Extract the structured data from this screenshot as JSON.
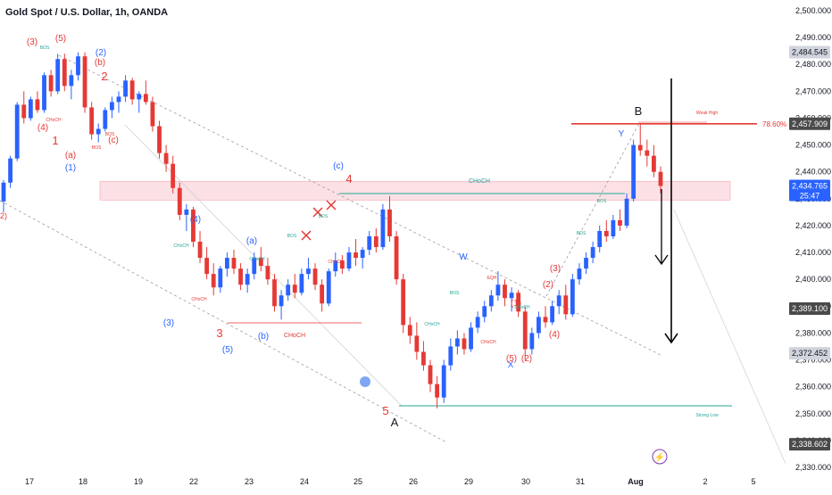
{
  "header": {
    "title": "Gold Spot / U.S. Dollar, 1h, OANDA"
  },
  "chart_data": {
    "type": "candlestick",
    "symbol_title": "Gold Spot / U.S. Dollar, 1h, OANDA",
    "y_axis": {
      "ticks": [
        "2,500.000",
        "2,490.000",
        "2,480.000",
        "2,470.000",
        "2,460.000",
        "2,450.000",
        "2,440.000",
        "2,430.000",
        "2,420.000",
        "2,410.000",
        "2,400.000",
        "2,390.000",
        "2,380.000",
        "2,370.000",
        "2,360.000",
        "2,350.000",
        "2,340.000",
        "2,330.000"
      ],
      "range": [
        2330,
        2500
      ]
    },
    "x_axis": {
      "ticks": [
        "17",
        "18",
        "19",
        "22",
        "23",
        "24",
        "25",
        "26",
        "29",
        "30",
        "31",
        "Aug",
        "2",
        "5"
      ]
    },
    "price_labels": [
      {
        "value": "2,484.545",
        "style": "gray",
        "y": 2484.545
      },
      {
        "value": "2,457.909",
        "style": "dark",
        "y": 2457.909
      },
      {
        "value": "2,434.765",
        "style": "blue",
        "y": 2434.765,
        "sub": "25:47"
      },
      {
        "value": "2,389.100",
        "style": "dark",
        "y": 2389.1
      },
      {
        "value": "2,372.452",
        "style": "gray",
        "y": 2372.452
      },
      {
        "value": "2,338.602",
        "style": "dark",
        "y": 2338.602
      }
    ],
    "fib_label": "78.60%",
    "fib_level": 2457.909,
    "zone": {
      "top": 2436.5,
      "bottom": 2429.5
    },
    "annotations": {
      "wave_red": [
        "(3)",
        "(5)",
        "(b)",
        "2",
        "(4)",
        "1",
        "(a)",
        "(c)",
        "4",
        "3",
        "5",
        "(1)",
        "(2)",
        "(3)",
        "(4)",
        "(5)",
        "(2)"
      ],
      "wave_blue": [
        "(2)",
        "(1)",
        "(4)",
        "(a)",
        "(c)",
        "(3)",
        "(5)",
        "(b)",
        "W",
        "X",
        "Y"
      ],
      "wave_black": [
        "B",
        "A"
      ],
      "texts": {
        "choch": "CHoCH",
        "bos": "BOS",
        "eqh": "EQH",
        "weak_high": "Weak High",
        "strong_low": "Strong Low",
        "left_edge": "2)"
      }
    },
    "candles": [
      [
        2429,
        2437,
        2425,
        2436
      ],
      [
        2436,
        2446,
        2434,
        2445
      ],
      [
        2445,
        2466,
        2444,
        2465
      ],
      [
        2465,
        2470,
        2458,
        2460
      ],
      [
        2460,
        2468,
        2459,
        2467
      ],
      [
        2467,
        2470,
        2462,
        2463
      ],
      [
        2463,
        2477,
        2462,
        2476
      ],
      [
        2476,
        2478,
        2468,
        2470
      ],
      [
        2470,
        2484,
        2469,
        2482
      ],
      [
        2482,
        2484,
        2470,
        2472
      ],
      [
        2472,
        2478,
        2467,
        2476
      ],
      [
        2476,
        2484.5,
        2474,
        2483
      ],
      [
        2483,
        2484.5,
        2462,
        2464
      ],
      [
        2464,
        2466,
        2452,
        2454
      ],
      [
        2454,
        2458,
        2451,
        2456
      ],
      [
        2456,
        2464,
        2455,
        2463
      ],
      [
        2463,
        2468,
        2460,
        2466
      ],
      [
        2466,
        2470,
        2462,
        2468
      ],
      [
        2468,
        2476,
        2466,
        2474
      ],
      [
        2474,
        2475,
        2465,
        2467
      ],
      [
        2467,
        2470,
        2462,
        2469
      ],
      [
        2469,
        2474,
        2465,
        2466
      ],
      [
        2466,
        2468,
        2455,
        2457
      ],
      [
        2457,
        2459,
        2445,
        2447
      ],
      [
        2447,
        2450,
        2440,
        2443
      ],
      [
        2443,
        2446,
        2432,
        2434
      ],
      [
        2434,
        2436,
        2422,
        2424
      ],
      [
        2424,
        2428,
        2418,
        2426
      ],
      [
        2426,
        2427,
        2412,
        2414
      ],
      [
        2414,
        2418,
        2406,
        2408
      ],
      [
        2408,
        2412,
        2400,
        2402
      ],
      [
        2402,
        2406,
        2394,
        2397
      ],
      [
        2397,
        2405,
        2395,
        2404
      ],
      [
        2404,
        2410,
        2401,
        2408
      ],
      [
        2408,
        2411,
        2402,
        2404
      ],
      [
        2404,
        2406,
        2396,
        2398
      ],
      [
        2398,
        2404,
        2395,
        2402
      ],
      [
        2402,
        2410,
        2400,
        2408
      ],
      [
        2408,
        2412,
        2403,
        2405
      ],
      [
        2405,
        2408,
        2398,
        2400
      ],
      [
        2400,
        2402,
        2388,
        2390
      ],
      [
        2390,
        2396,
        2385,
        2394
      ],
      [
        2394,
        2400,
        2392,
        2398
      ],
      [
        2398,
        2402,
        2393,
        2395
      ],
      [
        2395,
        2404,
        2394,
        2402
      ],
      [
        2402,
        2408,
        2400,
        2404
      ],
      [
        2404,
        2406,
        2396,
        2398
      ],
      [
        2398,
        2400,
        2388,
        2391
      ],
      [
        2391,
        2404,
        2390,
        2403
      ],
      [
        2403,
        2410,
        2401,
        2407
      ],
      [
        2407,
        2409,
        2402,
        2404
      ],
      [
        2404,
        2412,
        2403,
        2410
      ],
      [
        2410,
        2415,
        2405,
        2408
      ],
      [
        2408,
        2412,
        2404,
        2411
      ],
      [
        2411,
        2418,
        2409,
        2416
      ],
      [
        2416,
        2419,
        2410,
        2412
      ],
      [
        2412,
        2428,
        2411,
        2426
      ],
      [
        2426,
        2431,
        2414,
        2416
      ],
      [
        2416,
        2418,
        2398,
        2400
      ],
      [
        2400,
        2402,
        2380,
        2383
      ],
      [
        2383,
        2386,
        2376,
        2379
      ],
      [
        2379,
        2384,
        2370,
        2373
      ],
      [
        2373,
        2377,
        2366,
        2368
      ],
      [
        2368,
        2370,
        2358,
        2361
      ],
      [
        2361,
        2364,
        2352,
        2356
      ],
      [
        2356,
        2370,
        2354,
        2368
      ],
      [
        2368,
        2378,
        2366,
        2375
      ],
      [
        2375,
        2381,
        2372,
        2378
      ],
      [
        2378,
        2380,
        2372,
        2374
      ],
      [
        2374,
        2384,
        2373,
        2382
      ],
      [
        2382,
        2388,
        2380,
        2386
      ],
      [
        2386,
        2392,
        2384,
        2390
      ],
      [
        2390,
        2396,
        2388,
        2394
      ],
      [
        2394,
        2403,
        2392,
        2398
      ],
      [
        2398,
        2400,
        2390,
        2393
      ],
      [
        2393,
        2397,
        2388,
        2395
      ],
      [
        2395,
        2396,
        2386,
        2388
      ],
      [
        2388,
        2390,
        2370,
        2374
      ],
      [
        2374,
        2382,
        2372,
        2380
      ],
      [
        2380,
        2388,
        2378,
        2386
      ],
      [
        2386,
        2390,
        2382,
        2384
      ],
      [
        2384,
        2392,
        2383,
        2390
      ],
      [
        2390,
        2396,
        2387,
        2394
      ],
      [
        2394,
        2398,
        2385,
        2387
      ],
      [
        2387,
        2402,
        2386,
        2400
      ],
      [
        2400,
        2406,
        2398,
        2404
      ],
      [
        2404,
        2410,
        2402,
        2408
      ],
      [
        2408,
        2414,
        2406,
        2412
      ],
      [
        2412,
        2420,
        2410,
        2418
      ],
      [
        2418,
        2422,
        2414,
        2416
      ],
      [
        2416,
        2424,
        2415,
        2422
      ],
      [
        2422,
        2426,
        2418,
        2420
      ],
      [
        2420,
        2432,
        2419,
        2430
      ],
      [
        2430,
        2452,
        2429,
        2450
      ],
      [
        2450,
        2458,
        2446,
        2448
      ],
      [
        2448,
        2452,
        2442,
        2446
      ],
      [
        2446,
        2450,
        2438,
        2440
      ],
      [
        2440,
        2442,
        2432,
        2434.765
      ]
    ]
  }
}
